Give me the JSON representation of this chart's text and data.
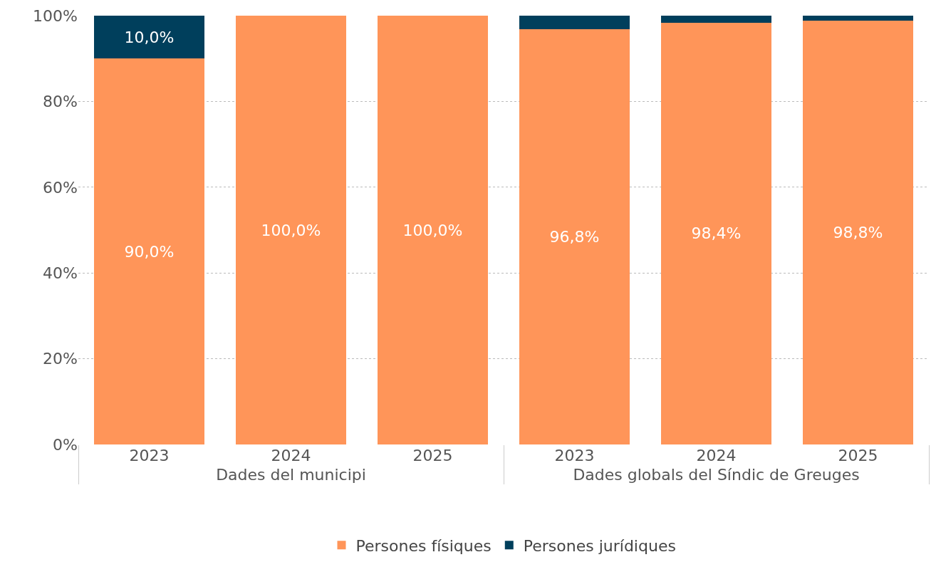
{
  "chart_data": {
    "type": "bar",
    "stacked": true,
    "categories": [
      "2023",
      "2024",
      "2025",
      "2023",
      "2024",
      "2025"
    ],
    "series": [
      {
        "name": "Persones físiques",
        "color": "#ff9559",
        "values": [
          90.0,
          100.0,
          100.0,
          96.8,
          98.4,
          98.8
        ],
        "value_labels": [
          "90,0%",
          "100,0%",
          "100,0%",
          "96,8%",
          "98,4%",
          "98,8%"
        ]
      },
      {
        "name": "Persones jurídiques",
        "color": "#003f5c",
        "values": [
          10.0,
          0,
          0,
          3.2,
          1.6,
          1.2
        ],
        "value_labels": [
          "10,0%",
          null,
          null,
          null,
          null,
          null
        ]
      }
    ],
    "annotations": [
      "Dades del municipi",
      "Dades globals del Síndic de Greuges"
    ],
    "ylim": [
      0,
      100
    ],
    "yticks": [
      {
        "value": 0,
        "label": "0%"
      },
      {
        "value": 20,
        "label": "20%"
      },
      {
        "value": 40,
        "label": "40%"
      },
      {
        "value": 60,
        "label": "60%"
      },
      {
        "value": 80,
        "label": "80%"
      },
      {
        "value": 100,
        "label": "100%"
      }
    ],
    "grid": "y",
    "legend": "bottom"
  }
}
